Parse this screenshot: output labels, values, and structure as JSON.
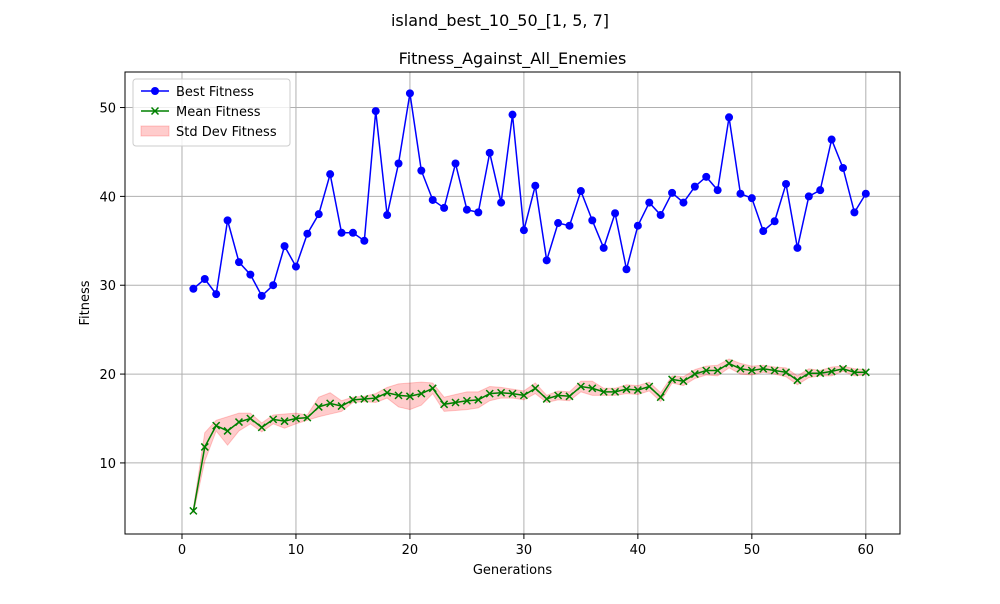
{
  "figure": {
    "suptitle": "island_best_10_50_[1, 5, 7]"
  },
  "chart_data": {
    "type": "line",
    "title": "Fitness_Against_All_Enemies",
    "xlabel": "Generations",
    "ylabel": "Fitness",
    "xlim": [
      -5,
      63
    ],
    "ylim": [
      2,
      54
    ],
    "xticks": [
      0,
      10,
      20,
      30,
      40,
      50,
      60
    ],
    "yticks": [
      10,
      20,
      30,
      40,
      50
    ],
    "grid": true,
    "legend_position": "upper-left",
    "x": [
      1,
      2,
      3,
      4,
      5,
      6,
      7,
      8,
      9,
      10,
      11,
      12,
      13,
      14,
      15,
      16,
      17,
      18,
      19,
      20,
      21,
      22,
      23,
      24,
      25,
      26,
      27,
      28,
      29,
      30,
      31,
      32,
      33,
      34,
      35,
      36,
      37,
      38,
      39,
      40,
      41,
      42,
      43,
      44,
      45,
      46,
      47,
      48,
      49,
      50,
      51,
      52,
      53,
      54,
      55,
      56,
      57,
      58,
      59,
      60
    ],
    "series": [
      {
        "name": "Best Fitness",
        "color": "#0000ff",
        "marker": "circle",
        "values": [
          29.6,
          30.7,
          29.0,
          37.3,
          32.6,
          31.2,
          28.8,
          30.0,
          34.4,
          32.1,
          35.8,
          38.0,
          42.5,
          35.9,
          35.9,
          35.0,
          49.6,
          37.9,
          43.7,
          51.6,
          42.9,
          39.6,
          38.7,
          43.7,
          38.5,
          38.2,
          44.9,
          39.3,
          49.2,
          36.2,
          41.2,
          32.8,
          37.0,
          36.7,
          40.6,
          37.3,
          34.2,
          38.1,
          31.8,
          36.7,
          39.3,
          37.9,
          40.4,
          39.3,
          41.1,
          42.2,
          40.7,
          48.9,
          40.3,
          39.8,
          36.1,
          37.2,
          41.4,
          34.2,
          40.0,
          40.7,
          46.4,
          43.2,
          38.2,
          40.3
        ]
      },
      {
        "name": "Mean Fitness",
        "color": "#008000",
        "marker": "x",
        "values": [
          4.6,
          11.8,
          14.2,
          13.6,
          14.6,
          15.0,
          14.0,
          14.9,
          14.7,
          15.0,
          15.1,
          16.3,
          16.7,
          16.4,
          17.1,
          17.2,
          17.3,
          17.9,
          17.6,
          17.5,
          17.8,
          18.4,
          16.6,
          16.8,
          17.0,
          17.1,
          17.8,
          17.9,
          17.8,
          17.6,
          18.4,
          17.2,
          17.6,
          17.5,
          18.6,
          18.4,
          18.0,
          18.0,
          18.3,
          18.2,
          18.6,
          17.4,
          19.4,
          19.2,
          20.0,
          20.4,
          20.4,
          21.2,
          20.6,
          20.4,
          20.6,
          20.4,
          20.2,
          19.3,
          20.1,
          20.1,
          20.3,
          20.6,
          20.2,
          20.2
        ]
      }
    ],
    "band": {
      "name": "Std Dev Fitness",
      "color": "#ff0000",
      "opacity": 0.2,
      "values": [
        0.3,
        1.6,
        0.6,
        1.6,
        1.0,
        0.6,
        0.5,
        0.5,
        0.8,
        0.6,
        0.3,
        1.1,
        1.2,
        0.6,
        0.3,
        0.3,
        0.5,
        0.6,
        1.3,
        1.5,
        1.3,
        0.6,
        0.8,
        0.9,
        1.0,
        0.9,
        0.8,
        0.6,
        0.5,
        0.5,
        0.6,
        0.4,
        0.5,
        0.5,
        0.6,
        0.8,
        0.4,
        0.4,
        0.5,
        0.5,
        0.5,
        0.5,
        0.4,
        0.5,
        0.5,
        0.5,
        0.6,
        0.5,
        0.6,
        0.5,
        0.4,
        0.4,
        0.5,
        0.5,
        0.5,
        0.3,
        0.5,
        0.3,
        0.4,
        0.3
      ]
    }
  }
}
